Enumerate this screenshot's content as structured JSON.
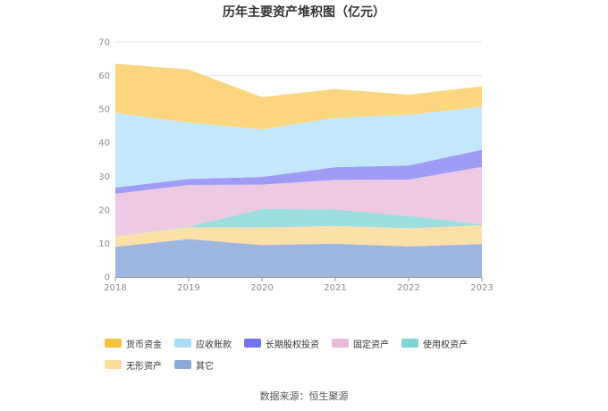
{
  "chart_data": {
    "type": "area",
    "stacked": true,
    "title": "历年主要资产堆积图（亿元）",
    "x": [
      "2018",
      "2019",
      "2020",
      "2021",
      "2022",
      "2023"
    ],
    "ylim": [
      0,
      70
    ],
    "yticks": [
      0,
      10,
      20,
      30,
      40,
      50,
      60,
      70
    ],
    "grid": true,
    "legend_position": "bottom",
    "series": [
      {
        "name": "其它",
        "color": "#9db6e0",
        "values": [
          9.0,
          11.3,
          9.5,
          9.9,
          9.1,
          9.8
        ]
      },
      {
        "name": "无形资产",
        "color": "#fde0a8",
        "values": [
          3.0,
          3.5,
          5.2,
          5.3,
          5.4,
          5.6
        ]
      },
      {
        "name": "使用权资产",
        "color": "#9ddfe0",
        "values": [
          0.0,
          0.2,
          5.6,
          4.9,
          3.7,
          0.3
        ]
      },
      {
        "name": "固定资产",
        "color": "#efc9e3",
        "values": [
          12.8,
          12.4,
          7.2,
          8.8,
          10.8,
          17.1
        ]
      },
      {
        "name": "长期股权投资",
        "color": "#9f9cf6",
        "values": [
          1.8,
          1.8,
          2.3,
          3.8,
          4.2,
          5.1
        ]
      },
      {
        "name": "应收账款",
        "color": "#c3e8fb",
        "values": [
          22.3,
          16.8,
          14.2,
          14.7,
          15.1,
          12.8
        ]
      },
      {
        "name": "货币资金",
        "color": "#fcd67f",
        "values": [
          14.6,
          15.8,
          9.6,
          8.6,
          6.0,
          6.1
        ]
      }
    ],
    "legend": [
      {
        "name": "货币资金",
        "color": "#f7c140"
      },
      {
        "name": "应收账款",
        "color": "#a9dcf8"
      },
      {
        "name": "长期股权投资",
        "color": "#7474ee"
      },
      {
        "name": "固定资产",
        "color": "#ebb9dc"
      },
      {
        "name": "使用权资产",
        "color": "#7fd5d6"
      },
      {
        "name": "无形资产",
        "color": "#fddb9c"
      },
      {
        "name": "其它",
        "color": "#8eaad8"
      }
    ]
  },
  "source": "数据来源：恒生聚源"
}
